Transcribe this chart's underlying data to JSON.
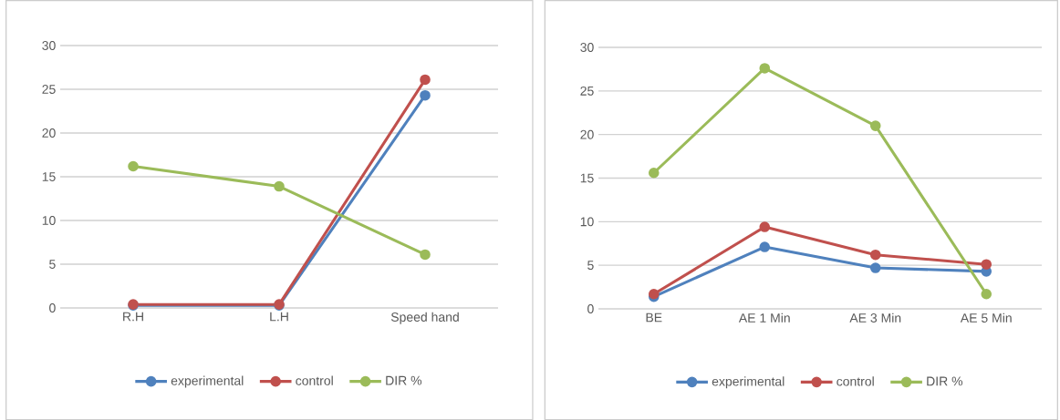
{
  "chart_data": [
    {
      "type": "line",
      "categories": [
        "R.H",
        "L.H",
        "Speed hand"
      ],
      "series": [
        {
          "name": "experimental",
          "color": "#4f81bd",
          "values": [
            0.3,
            0.3,
            24.3
          ]
        },
        {
          "name": "control",
          "color": "#c0504d",
          "values": [
            0.4,
            0.4,
            26.1
          ]
        },
        {
          "name": "DIR %",
          "color": "#9bbb59",
          "values": [
            16.2,
            13.9,
            6.1
          ]
        }
      ],
      "ylim": [
        0,
        30
      ],
      "yticks": [
        0,
        5,
        10,
        15,
        20,
        25,
        30
      ],
      "grid": "y",
      "legend": "bottom",
      "marker": "circle",
      "line_style": "solid"
    },
    {
      "type": "line",
      "categories": [
        "BE",
        "AE 1 Min",
        "AE 3 Min",
        "AE 5 Min"
      ],
      "series": [
        {
          "name": "experimental",
          "color": "#4f81bd",
          "values": [
            1.4,
            7.1,
            4.7,
            4.3
          ]
        },
        {
          "name": "control",
          "color": "#c0504d",
          "values": [
            1.7,
            9.4,
            6.2,
            5.1
          ]
        },
        {
          "name": "DIR %",
          "color": "#9bbb59",
          "values": [
            15.6,
            27.6,
            21.0,
            1.7
          ]
        }
      ],
      "ylim": [
        0,
        30
      ],
      "yticks": [
        0,
        5,
        10,
        15,
        20,
        25,
        30
      ],
      "grid": "y",
      "legend": "bottom",
      "marker": "circle",
      "line_style": "solid"
    }
  ]
}
